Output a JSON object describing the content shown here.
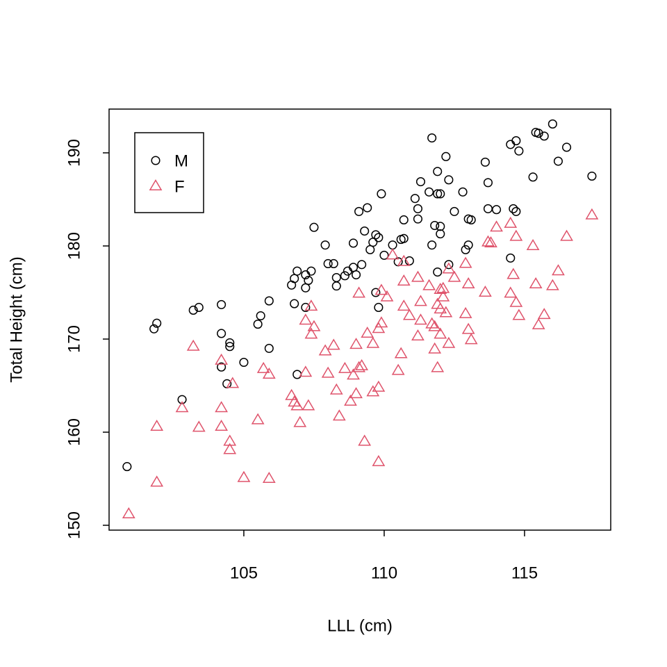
{
  "chart_data": {
    "type": "scatter",
    "x_label": "LLL (cm)",
    "y_label": "Total Height (cm)",
    "xlim": [
      100.2,
      118.07
    ],
    "ylim": [
      149.48,
      194.7
    ],
    "xticks": [
      105,
      110,
      115
    ],
    "yticks": [
      150,
      160,
      170,
      180,
      190
    ],
    "legend_position": "topleft",
    "series": [
      {
        "name": "M",
        "color": "#000000",
        "marker": "circle",
        "x": [
          100.84,
          101.8,
          101.9,
          102.8,
          103.2,
          103.4,
          104.2,
          104.2,
          104.2,
          104.5,
          104.5,
          104.4,
          105.0,
          105.5,
          105.6,
          105.9,
          105.9,
          106.7,
          106.8,
          106.9,
          106.8,
          106.9,
          107.2,
          107.4,
          107.3,
          107.2,
          107.2,
          107.5,
          107.9,
          108.0,
          108.2,
          108.3,
          108.3,
          108.6,
          108.7,
          108.9,
          108.9,
          109.0,
          109.1,
          109.2,
          109.3,
          109.4,
          109.5,
          109.6,
          109.7,
          109.8,
          109.7,
          109.8,
          109.9,
          110.0,
          110.3,
          110.5,
          110.6,
          110.7,
          110.7,
          110.9,
          111.1,
          111.2,
          111.2,
          111.3,
          111.6,
          111.7,
          111.7,
          111.8,
          111.9,
          111.9,
          112.0,
          112.0,
          112.0,
          111.9,
          112.2,
          112.3,
          112.3,
          112.5,
          112.8,
          112.9,
          113.0,
          113.0,
          113.1,
          113.6,
          113.7,
          113.7,
          114.0,
          114.5,
          114.5,
          114.7,
          114.8,
          114.6,
          114.7,
          115.3,
          115.4,
          115.5,
          115.7,
          116.0,
          116.2,
          116.5,
          117.4
        ],
        "y": [
          156.3,
          171.1,
          171.7,
          163.5,
          173.1,
          173.4,
          173.7,
          170.6,
          167.0,
          169.2,
          169.6,
          165.2,
          167.5,
          171.6,
          172.5,
          174.1,
          169.0,
          175.8,
          176.5,
          177.3,
          173.8,
          166.2,
          176.9,
          177.3,
          176.3,
          175.5,
          173.4,
          182.0,
          180.1,
          178.1,
          178.1,
          176.6,
          175.7,
          176.8,
          177.3,
          180.3,
          177.7,
          176.9,
          183.7,
          178.0,
          181.6,
          184.1,
          179.6,
          180.4,
          181.2,
          180.9,
          175.0,
          173.4,
          185.6,
          179.0,
          180.1,
          178.3,
          180.7,
          180.8,
          182.8,
          178.4,
          185.1,
          184.0,
          182.9,
          186.9,
          185.8,
          180.1,
          191.6,
          182.2,
          188.0,
          185.6,
          185.6,
          182.1,
          181.3,
          177.2,
          189.6,
          178.0,
          187.1,
          183.7,
          185.8,
          179.6,
          180.1,
          182.9,
          182.8,
          189.0,
          186.8,
          184.0,
          183.9,
          178.7,
          190.9,
          191.3,
          190.2,
          184.0,
          183.7,
          187.4,
          192.2,
          192.1,
          191.8,
          193.1,
          189.1,
          190.6,
          187.5
        ]
      },
      {
        "name": "F",
        "color": "#DF536B",
        "marker": "triangle",
        "x": [
          100.9,
          101.9,
          101.9,
          102.8,
          103.2,
          103.4,
          104.2,
          104.2,
          104.2,
          104.5,
          104.5,
          104.6,
          105.0,
          105.5,
          105.7,
          105.9,
          105.9,
          106.7,
          106.8,
          106.9,
          107.0,
          107.2,
          107.3,
          107.2,
          107.4,
          107.4,
          107.5,
          107.9,
          108.0,
          108.2,
          108.3,
          108.4,
          108.6,
          108.8,
          108.9,
          109.0,
          109.0,
          109.1,
          109.1,
          109.2,
          109.3,
          109.4,
          109.6,
          109.6,
          109.8,
          109.8,
          109.9,
          109.8,
          109.9,
          110.1,
          110.3,
          110.5,
          110.6,
          110.7,
          110.7,
          110.7,
          110.9,
          111.2,
          111.2,
          111.3,
          111.3,
          111.6,
          111.7,
          111.8,
          111.8,
          111.9,
          111.9,
          112.0,
          112.0,
          112.0,
          112.1,
          112.1,
          112.2,
          112.3,
          112.3,
          112.5,
          112.9,
          112.9,
          113.0,
          113.0,
          113.1,
          113.6,
          113.7,
          113.8,
          114.0,
          114.5,
          114.5,
          114.6,
          114.7,
          114.7,
          114.8,
          115.3,
          115.4,
          115.5,
          115.7,
          116.0,
          116.2,
          116.5,
          117.4
        ],
        "y": [
          151.2,
          154.6,
          160.6,
          162.6,
          169.2,
          160.5,
          167.7,
          162.6,
          160.6,
          159.0,
          158.1,
          165.2,
          155.1,
          161.3,
          166.8,
          155.0,
          166.2,
          163.9,
          163.2,
          162.8,
          161.0,
          166.4,
          162.8,
          172.0,
          173.5,
          170.5,
          171.3,
          168.7,
          166.3,
          169.3,
          164.5,
          161.7,
          166.8,
          163.3,
          166.1,
          169.4,
          164.1,
          166.9,
          174.9,
          167.1,
          159.0,
          170.6,
          169.5,
          164.3,
          171.1,
          156.8,
          171.7,
          164.8,
          175.2,
          174.5,
          179.0,
          166.6,
          168.4,
          178.3,
          173.5,
          176.2,
          172.5,
          170.3,
          176.6,
          174.0,
          172.0,
          175.7,
          171.6,
          171.3,
          168.9,
          173.7,
          166.9,
          175.3,
          173.2,
          170.5,
          175.4,
          174.5,
          172.8,
          177.5,
          169.5,
          176.6,
          172.7,
          178.1,
          175.9,
          171.0,
          169.9,
          175.0,
          180.4,
          180.3,
          182.0,
          174.9,
          182.4,
          176.9,
          173.9,
          181.0,
          172.5,
          180.0,
          175.9,
          171.5,
          172.6,
          175.7,
          177.3,
          181.0,
          183.3
        ]
      }
    ]
  }
}
